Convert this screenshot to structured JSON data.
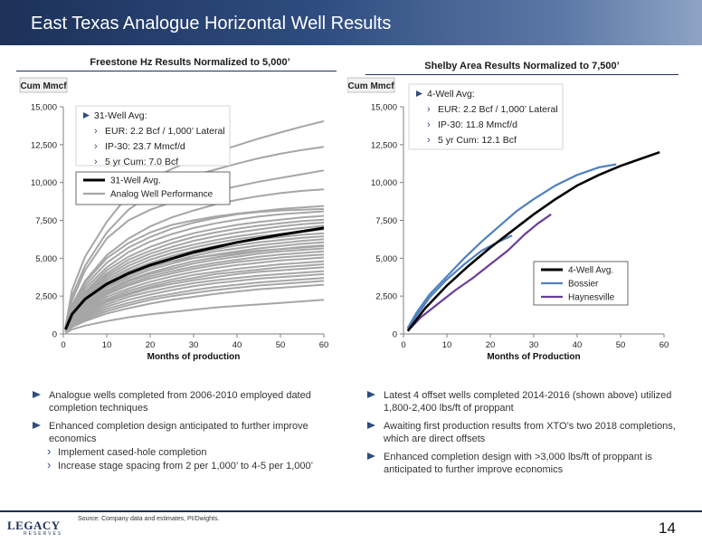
{
  "header": {
    "title": "East Texas Analogue Horizontal Well Results"
  },
  "chart_data": [
    {
      "type": "line",
      "title": "Freestone Hz Results Normalized to 5,000’",
      "ylabel": "Cum Mmcf",
      "xlabel": "Months of production",
      "xlim": [
        0,
        60
      ],
      "ylim": [
        0,
        15000
      ],
      "xticks": [
        0,
        10,
        20,
        30,
        40,
        50,
        60
      ],
      "yticks": [
        0,
        2500,
        5000,
        7500,
        10000,
        12500,
        15000
      ],
      "ytick_labels": [
        "0",
        "2,500",
        "5,000",
        "7,500",
        "10,000",
        "12,500",
        "15,000"
      ],
      "grid": false,
      "info_box": {
        "head": "31-Well Avg:",
        "items": [
          "EUR: 2.2 Bcf / 1,000’ Lateral",
          "IP-30: 23.7 Mmcf/d",
          "5 yr Cum: 7.0 Bcf"
        ]
      },
      "legend": [
        "31-Well Avg.",
        "Analog Well Performance"
      ],
      "series": [
        {
          "name": "31-Well Avg.",
          "color": "#000000",
          "x": [
            0.5,
            2,
            5,
            10,
            15,
            20,
            30,
            40,
            50,
            60
          ],
          "y": [
            300,
            1300,
            2300,
            3300,
            4000,
            4550,
            5400,
            6050,
            6550,
            7000
          ]
        },
        {
          "name": "Analog Well Performance",
          "color": "#a6a6a6",
          "x": [
            0.5,
            2,
            5,
            10,
            15,
            20,
            25,
            30,
            35,
            40,
            45,
            50,
            55,
            60
          ],
          "lines": [
            [
              400,
              2200,
              4200,
              6300,
              7500,
              8200,
              8700,
              9100,
              9450,
              9750,
              10050,
              10300,
              10550,
              10800
            ],
            [
              500,
              2900,
              5100,
              7400,
              9200,
              10200,
              10900,
              11500,
              12000,
              12450,
              12900,
              13300,
              13700,
              14050
            ],
            [
              400,
              2500,
              4500,
              6700,
              8200,
              9200,
              9900,
              10450,
              10850,
              11250,
              11600,
              11900,
              12150,
              12350
            ],
            [
              350,
              1900,
              3500,
              5200,
              6300,
              7100,
              7700,
              8150,
              8550,
              8850,
              9100,
              9300,
              9450,
              9550
            ],
            [
              300,
              1800,
              3400,
              5000,
              6000,
              6700,
              7200,
              7500,
              7750,
              7950,
              8100,
              8250,
              8350,
              8450
            ],
            [
              300,
              1700,
              3200,
              4700,
              5700,
              6400,
              6950,
              7350,
              7650,
              7900,
              8050,
              8150,
              8200,
              8250
            ],
            [
              280,
              1600,
              3000,
              4400,
              5400,
              6100,
              6600,
              7000,
              7300,
              7550,
              7750,
              7900,
              8000,
              8100
            ],
            [
              260,
              1500,
              2800,
              4200,
              5100,
              5750,
              6250,
              6650,
              6950,
              7200,
              7400,
              7550,
              7700,
              7800
            ],
            [
              250,
              1450,
              2700,
              4000,
              4900,
              5500,
              6000,
              6400,
              6700,
              6950,
              7150,
              7300,
              7450,
              7550
            ],
            [
              240,
              1400,
              2600,
              3850,
              4700,
              5300,
              5750,
              6150,
              6450,
              6700,
              6900,
              7100,
              7250,
              7350
            ],
            [
              230,
              1350,
              2500,
              3700,
              4500,
              5100,
              5550,
              5900,
              6200,
              6450,
              6650,
              6850,
              7000,
              7150
            ],
            [
              220,
              1300,
              2400,
              3550,
              4300,
              4900,
              5350,
              5700,
              6000,
              6250,
              6450,
              6600,
              6750,
              6900
            ],
            [
              210,
              1250,
              2300,
              3400,
              4150,
              4700,
              5150,
              5500,
              5800,
              6050,
              6250,
              6400,
              6550,
              6650
            ],
            [
              200,
              1200,
              2200,
              3300,
              4000,
              4550,
              4950,
              5300,
              5600,
              5850,
              6050,
              6200,
              6350,
              6450
            ],
            [
              190,
              1150,
              2100,
              3150,
              3850,
              4400,
              4800,
              5150,
              5450,
              5650,
              5850,
              6000,
              6150,
              6250
            ],
            [
              180,
              1100,
              2050,
              3050,
              3700,
              4250,
              4650,
              5000,
              5250,
              5450,
              5650,
              5800,
              5950,
              6050
            ],
            [
              170,
              1050,
              1950,
              2900,
              3550,
              4050,
              4450,
              4800,
              5050,
              5250,
              5450,
              5600,
              5750,
              5850
            ],
            [
              160,
              1000,
              1900,
              2800,
              3450,
              3950,
              4300,
              4650,
              4900,
              5100,
              5300,
              5450,
              5550,
              5650
            ],
            [
              150,
              950,
              1800,
              2700,
              3300,
              3800,
              4150,
              4450,
              4700,
              4900,
              5100,
              5250,
              5350,
              5450
            ],
            [
              150,
              900,
              1700,
              2600,
              3200,
              3650,
              4000,
              4300,
              4550,
              4750,
              4900,
              5050,
              5150,
              5250
            ],
            [
              140,
              850,
              1600,
              2450,
              3000,
              3450,
              3800,
              4100,
              4350,
              4550,
              4700,
              4850,
              4950,
              5050
            ],
            [
              130,
              800,
              1500,
              2300,
              2850,
              3250,
              3600,
              3900,
              4100,
              4300,
              4450,
              4600,
              4700,
              4800
            ],
            [
              120,
              750,
              1400,
              2200,
              2700,
              3100,
              3450,
              3700,
              3950,
              4100,
              4250,
              4400,
              4500,
              4600
            ],
            [
              120,
              700,
              1350,
              2100,
              2600,
              3000,
              3300,
              3550,
              3750,
              3950,
              4100,
              4200,
              4300,
              4400
            ],
            [
              110,
              650,
              1250,
              1950,
              2450,
              2800,
              3100,
              3350,
              3550,
              3700,
              3850,
              3950,
              4050,
              4150
            ],
            [
              100,
              600,
              1150,
              1800,
              2250,
              2600,
              2900,
              3150,
              3350,
              3500,
              3650,
              3750,
              3850,
              3950
            ],
            [
              100,
              550,
              1050,
              1650,
              2050,
              2400,
              2650,
              2900,
              3100,
              3250,
              3400,
              3500,
              3600,
              3700
            ],
            [
              90,
              500,
              950,
              1500,
              1900,
              2250,
              2500,
              2700,
              2900,
              3050,
              3200,
              3300,
              3400,
              3500
            ],
            [
              80,
              450,
              850,
              1350,
              1700,
              2000,
              2250,
              2450,
              2650,
              2800,
              2950,
              3050,
              3150,
              3250
            ],
            [
              60,
              300,
              550,
              850,
              1100,
              1300,
              1450,
              1600,
              1750,
              1850,
              1950,
              2050,
              2150,
              2250
            ],
            [
              200,
              1200,
              2200,
              3300,
              4000,
              4500,
              4800,
              5000,
              5200,
              5350,
              5500,
              5600,
              5700,
              5800
            ]
          ]
        }
      ]
    },
    {
      "type": "line",
      "title": "Shelby Area Results Normalized to 7,500’",
      "ylabel": "Cum Mmcf",
      "xlabel": "Months of Production",
      "xlim": [
        0,
        60
      ],
      "ylim": [
        0,
        15000
      ],
      "xticks": [
        0,
        10,
        20,
        30,
        40,
        50,
        60
      ],
      "yticks": [
        0,
        2500,
        5000,
        7500,
        10000,
        12500,
        15000
      ],
      "ytick_labels": [
        "0",
        "2,500",
        "5,000",
        "7,500",
        "10,000",
        "12,500",
        "15,000"
      ],
      "grid": false,
      "info_box": {
        "head": "4-Well Avg:",
        "items": [
          "EUR: 2.2 Bcf / 1,000’ Lateral",
          "IP-30: 11.8 Mmcf/d",
          "5 yr Cum: 12.1 Bcf"
        ]
      },
      "legend": [
        "4-Well Avg.",
        "Bossier",
        "Haynesville"
      ],
      "series": [
        {
          "name": "4-Well Avg.",
          "color": "#000000",
          "x": [
            1,
            5,
            10,
            15,
            20,
            25,
            30,
            35,
            40,
            45,
            50,
            55,
            59
          ],
          "y": [
            200,
            1700,
            3200,
            4500,
            5700,
            6800,
            7900,
            8900,
            9800,
            10500,
            11100,
            11600,
            12000
          ]
        },
        {
          "name": "Bossier",
          "color": "#4f81bd",
          "x": [
            1,
            3,
            6,
            10,
            14,
            18,
            22,
            26,
            30,
            35,
            40,
            45,
            49
          ],
          "y": [
            400,
            1400,
            2600,
            3800,
            5000,
            6100,
            7100,
            8100,
            8900,
            9800,
            10500,
            11000,
            11200
          ],
          "x2": [
            1,
            3,
            6,
            10,
            14,
            18,
            22,
            25
          ],
          "y2": [
            300,
            1200,
            2400,
            3600,
            4600,
            5500,
            6100,
            6500
          ]
        },
        {
          "name": "Haynesville",
          "color": "#6a3d9a",
          "x": [
            1,
            4,
            8,
            12,
            16,
            20,
            24,
            28,
            31,
            34
          ],
          "y": [
            200,
            1100,
            2000,
            2900,
            3700,
            4600,
            5500,
            6600,
            7300,
            7900
          ]
        }
      ]
    }
  ],
  "left_bullets": {
    "b1": "Analogue wells completed from 2006-2010 employed dated completion techniques",
    "b2": "Enhanced completion design anticipated to further improve economics",
    "s1": "Implement cased-hole completion",
    "s2": "Increase stage spacing from 2 per 1,000’ to 4-5 per 1,000’"
  },
  "right_bullets": {
    "b1": "Latest 4 offset wells completed 2014-2016 (shown above) utilized 1,800-2,400 lbs/ft of proppant",
    "b2": "Awaiting first production results from XTO’s two 2018 completions, which are direct offsets",
    "b3": "Enhanced completion design with >3,000 lbs/ft of proppant is anticipated to further improve economics"
  },
  "footer": {
    "source": "Source:   Company data and estimates, PI/Dwights.",
    "page": "14",
    "logo": "LEGACY",
    "logo_sub": "RESERVES"
  }
}
